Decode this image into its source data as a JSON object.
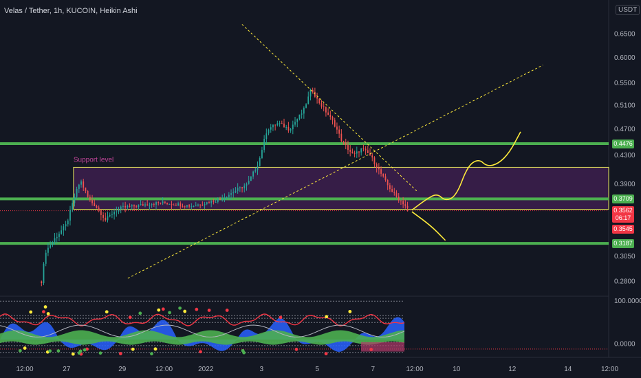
{
  "header": {
    "title": "Velas / Tether, 1h, KUCOIN, Heikin Ashi",
    "currency": "USDT"
  },
  "chart_data": {
    "type": "candlestick",
    "y_axis": {
      "scale": "log",
      "range": [
        0.27,
        0.7
      ],
      "tick_labels": [
        "0.6500",
        "0.6000",
        "0.5500",
        "0.5100",
        "0.4700",
        "0.4300",
        "0.3900",
        "0.3050",
        "0.2800"
      ]
    },
    "x_axis": {
      "tick_labels": [
        {
          "label": "12:00",
          "day": 25.5
        },
        {
          "label": "27",
          "day": 27
        },
        {
          "label": "29",
          "day": 29
        },
        {
          "label": "12:00",
          "day": 30.5
        },
        {
          "label": "2022",
          "day": 32
        },
        {
          "label": "3",
          "day": 34
        },
        {
          "label": "5",
          "day": 36
        },
        {
          "label": "7",
          "day": 38
        },
        {
          "label": "12:00",
          "day": 39.5
        },
        {
          "label": "10",
          "day": 41
        },
        {
          "label": "12",
          "day": 43
        },
        {
          "label": "14",
          "day": 45
        },
        {
          "label": "12:00",
          "day": 46.5
        }
      ]
    },
    "price_path": [
      [
        26.1,
        0.28
      ],
      [
        26.25,
        0.31
      ],
      [
        26.6,
        0.325
      ],
      [
        27.0,
        0.34
      ],
      [
        27.3,
        0.375
      ],
      [
        27.5,
        0.395
      ],
      [
        27.8,
        0.37
      ],
      [
        28.1,
        0.36
      ],
      [
        28.4,
        0.345
      ],
      [
        28.7,
        0.355
      ],
      [
        29.0,
        0.36
      ],
      [
        29.5,
        0.362
      ],
      [
        30.0,
        0.365
      ],
      [
        30.5,
        0.366
      ],
      [
        31.0,
        0.364
      ],
      [
        31.5,
        0.362
      ],
      [
        32.0,
        0.366
      ],
      [
        32.5,
        0.37
      ],
      [
        33.0,
        0.38
      ],
      [
        33.5,
        0.39
      ],
      [
        33.9,
        0.42
      ],
      [
        34.2,
        0.47
      ],
      [
        34.6,
        0.48
      ],
      [
        35.0,
        0.47
      ],
      [
        35.5,
        0.5
      ],
      [
        35.8,
        0.54
      ],
      [
        36.0,
        0.52
      ],
      [
        36.3,
        0.5
      ],
      [
        36.6,
        0.48
      ],
      [
        36.9,
        0.45
      ],
      [
        37.3,
        0.43
      ],
      [
        37.6,
        0.44
      ],
      [
        37.9,
        0.43
      ],
      [
        38.2,
        0.41
      ],
      [
        38.5,
        0.39
      ],
      [
        38.8,
        0.375
      ],
      [
        39.1,
        0.365
      ],
      [
        39.3,
        0.356
      ]
    ],
    "horizontal_levels": [
      {
        "price": 0.4476,
        "label": "0.4476",
        "color": "#4caf50"
      },
      {
        "price": 0.3709,
        "label": "0.3709",
        "color": "#4caf50"
      },
      {
        "price": 0.3187,
        "label": "0.3187",
        "color": "#4caf50"
      }
    ],
    "price_tags": [
      {
        "price": 0.3562,
        "label": "0.3562",
        "color": "#f23645"
      },
      {
        "price": 0.3472,
        "label": "06:17",
        "color": "#f23645"
      },
      {
        "price": 0.3345,
        "label": "0.3545",
        "color": "#f23645"
      }
    ],
    "support_zone": {
      "label": "Support level",
      "day_start": 27.25,
      "price_low": 0.358,
      "price_high": 0.413
    },
    "trendlines": [
      {
        "start": [
          33.3,
          0.672
        ],
        "end": [
          39.6,
          0.38
        ],
        "color": "#ffeb3b"
      },
      {
        "start": [
          29.2,
          0.283
        ],
        "end": [
          44.1,
          0.585
        ],
        "color": "#ffeb3b"
      }
    ],
    "projections": [
      {
        "points": [
          [
            39.4,
            0.357
          ],
          [
            39.9,
            0.37
          ],
          [
            40.3,
            0.378
          ],
          [
            40.6,
            0.368
          ],
          [
            41.0,
            0.375
          ],
          [
            41.4,
            0.415
          ],
          [
            41.8,
            0.425
          ],
          [
            42.1,
            0.414
          ],
          [
            42.5,
            0.418
          ],
          [
            42.9,
            0.434
          ],
          [
            43.3,
            0.466
          ]
        ],
        "color": "#ffeb3b"
      },
      {
        "points": [
          [
            39.4,
            0.355
          ],
          [
            40.1,
            0.338
          ],
          [
            40.6,
            0.322
          ]
        ],
        "color": "#ffeb3b"
      }
    ],
    "oscillator": {
      "tick_labels": [
        {
          "value": 100,
          "label": "100.0000"
        },
        {
          "value": 0,
          "label": "0.0000"
        }
      ],
      "range": [
        -30,
        110
      ]
    },
    "grid": false
  }
}
